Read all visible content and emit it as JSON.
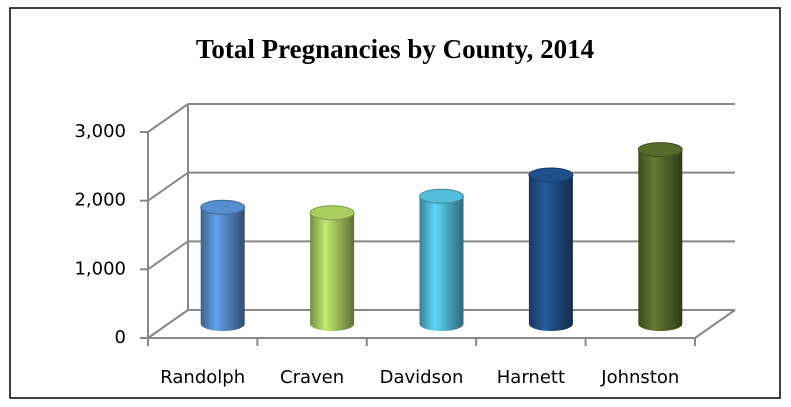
{
  "chart_data": {
    "type": "bar3d",
    "title": "Total Pregnancies by County, 2014",
    "categories": [
      "Randolph",
      "Craven",
      "Davidson",
      "Harnett",
      "Johnston"
    ],
    "values": [
      1700,
      1620,
      1860,
      2170,
      2540
    ],
    "colors": [
      "#4f81bd",
      "#9bbb59",
      "#4bacc6",
      "#1f497d",
      "#4f6228"
    ],
    "ylim": [
      0,
      3000
    ],
    "yticks": [
      {
        "value": 0,
        "label": "0"
      },
      {
        "value": 1000,
        "label": "1,000"
      },
      {
        "value": 2000,
        "label": "2,000"
      },
      {
        "value": 3000,
        "label": "3,000"
      }
    ],
    "grid": true
  }
}
